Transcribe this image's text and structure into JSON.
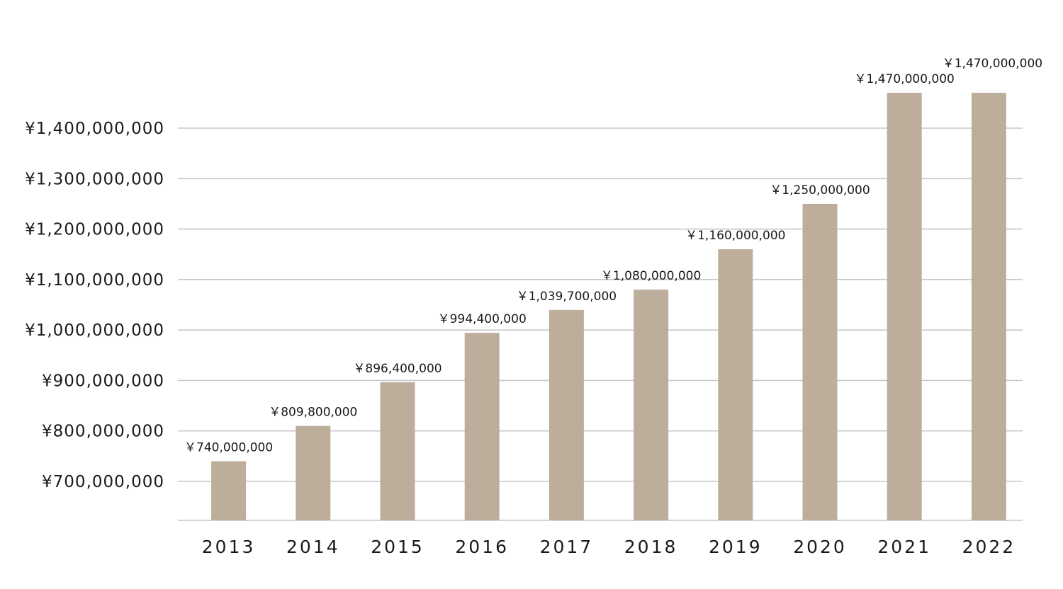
{
  "chart_data": {
    "type": "bar",
    "title": "",
    "xlabel": "",
    "ylabel": "",
    "categories": [
      "2013",
      "2014",
      "2015",
      "2016",
      "2017",
      "2018",
      "2019",
      "2020",
      "2021",
      "2022"
    ],
    "values": [
      740000000,
      809800000,
      896400000,
      994400000,
      1039700000,
      1080000000,
      1160000000,
      1250000000,
      1470000000,
      1470000000
    ],
    "data_labels": [
      "￥740,000,000",
      "￥809,800,000",
      "￥896,400,000",
      "￥994,400,000",
      "￥1,039,700,000",
      "￥1,080,000,000",
      "￥1,160,000,000",
      "￥1,250,000,000",
      "￥1,470,000,000",
      "￥1,470,000,000"
    ],
    "y_ticks": [
      {
        "value": 700000000,
        "label": "¥700,000,000"
      },
      {
        "value": 800000000,
        "label": "¥800,000,000"
      },
      {
        "value": 900000000,
        "label": "¥900,000,000"
      },
      {
        "value": 1000000000,
        "label": "¥1,000,000,000"
      },
      {
        "value": 1100000000,
        "label": "¥1,100,000,000"
      },
      {
        "value": 1200000000,
        "label": "¥1,200,000,000"
      },
      {
        "value": 1300000000,
        "label": "¥1,300,000,000"
      },
      {
        "value": 1400000000,
        "label": "¥1,400,000,000"
      }
    ],
    "ylim": [
      625000000,
      1490000000
    ],
    "grid": true,
    "legend": "none",
    "colors": {
      "bar": "#bdae9c",
      "grid": "#c8c8c8",
      "text": "#1a1a1a"
    }
  }
}
